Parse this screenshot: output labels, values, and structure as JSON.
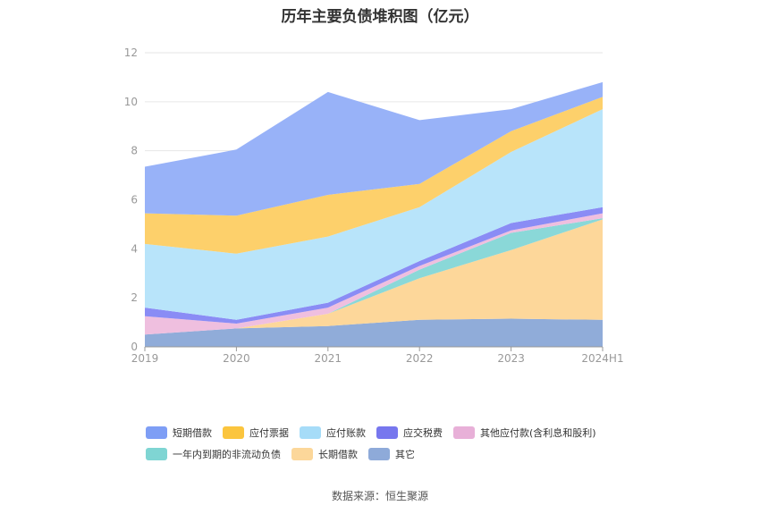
{
  "chart_data": {
    "type": "area",
    "stacked": true,
    "title": "历年主要负债堆积图（亿元）",
    "categories": [
      "2019",
      "2020",
      "2021",
      "2022",
      "2023",
      "2024H1"
    ],
    "ylim": [
      0,
      12
    ],
    "yticks": [
      "0",
      "2",
      "4",
      "6",
      "8",
      "10",
      "12"
    ],
    "grid": true,
    "legend_position": "bottom",
    "series": [
      {
        "name": "其它",
        "color": "#90acd9",
        "values": [
          0.5,
          0.75,
          0.85,
          1.1,
          1.15,
          1.1
        ]
      },
      {
        "name": "长期借款",
        "color": "#fdd79a",
        "values": [
          0.0,
          0.0,
          0.5,
          1.7,
          2.8,
          4.1
        ]
      },
      {
        "name": "一年内到期的非流动负债",
        "color": "#8ad8d8",
        "values": [
          0.0,
          0.0,
          0.0,
          0.35,
          0.7,
          0.05
        ]
      },
      {
        "name": "其他应付款(含利息和股利)",
        "color": "#efbfdf",
        "values": [
          0.75,
          0.2,
          0.25,
          0.15,
          0.1,
          0.2
        ]
      },
      {
        "name": "应交税费",
        "color": "#8a8cf5",
        "values": [
          0.35,
          0.15,
          0.2,
          0.2,
          0.3,
          0.25
        ]
      },
      {
        "name": "应付账款",
        "color": "#b8e4fa",
        "values": [
          2.6,
          2.7,
          2.7,
          2.2,
          2.9,
          4.0
        ]
      },
      {
        "name": "应付票据",
        "color": "#fdd06b",
        "values": [
          1.25,
          1.55,
          1.7,
          0.95,
          0.85,
          0.5
        ]
      },
      {
        "name": "短期借款",
        "color": "#98b2f8",
        "values": [
          1.9,
          2.7,
          4.2,
          2.6,
          0.9,
          0.6
        ]
      }
    ]
  },
  "legend": {
    "row1": [
      {
        "label": "短期借款",
        "color": "#7e9ef5"
      },
      {
        "label": "应付票据",
        "color": "#fbc53e"
      },
      {
        "label": "应付账款",
        "color": "#a6dcf8"
      },
      {
        "label": "应交税费",
        "color": "#7777ee"
      },
      {
        "label": "其他应付款(含利息和股利)",
        "color": "#e8b0d8"
      }
    ],
    "row2": [
      {
        "label": "一年内到期的非流动负债",
        "color": "#7fd5d3"
      },
      {
        "label": "长期借款",
        "color": "#fcd79a"
      },
      {
        "label": "其它",
        "color": "#8eaad9"
      }
    ]
  },
  "source": "数据来源：恒生聚源"
}
